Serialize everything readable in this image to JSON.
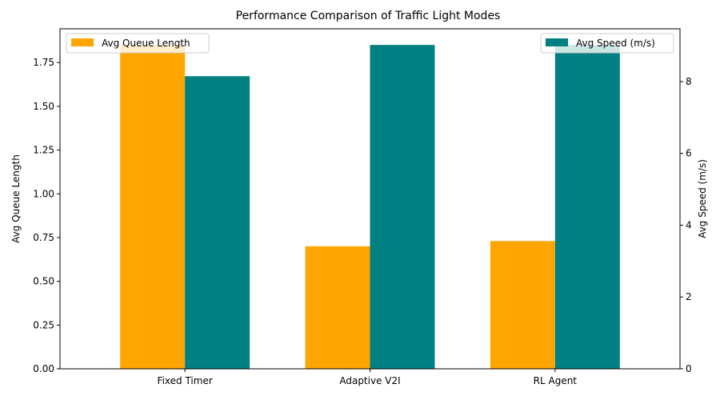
{
  "chart_data": {
    "type": "bar",
    "title": "Performance Comparison of Traffic Light Modes",
    "categories": [
      "Fixed Timer",
      "Adaptive V2I",
      "RL Agent"
    ],
    "series": [
      {
        "name": "Avg Queue Length",
        "axis": "left",
        "color": "#FFA500",
        "values": [
          1.85,
          0.7,
          0.73
        ]
      },
      {
        "name": "Avg Speed (m/s)",
        "axis": "right",
        "color": "#008080",
        "values": [
          8.15,
          9.02,
          9.02
        ]
      }
    ],
    "ylabel_left": "Avg Queue Length",
    "ylabel_right": "Avg Speed (m/s)",
    "ylim_left": [
      0,
      1.943
    ],
    "ylim_right": [
      0,
      9.47
    ],
    "yticks_left": [
      "0.00",
      "0.25",
      "0.50",
      "0.75",
      "1.00",
      "1.25",
      "1.50",
      "1.75"
    ],
    "yticks_right": [
      "0",
      "2",
      "4",
      "6",
      "8"
    ],
    "grid": false,
    "legend_left_placement": "upper-left",
    "legend_right_placement": "upper-right"
  }
}
